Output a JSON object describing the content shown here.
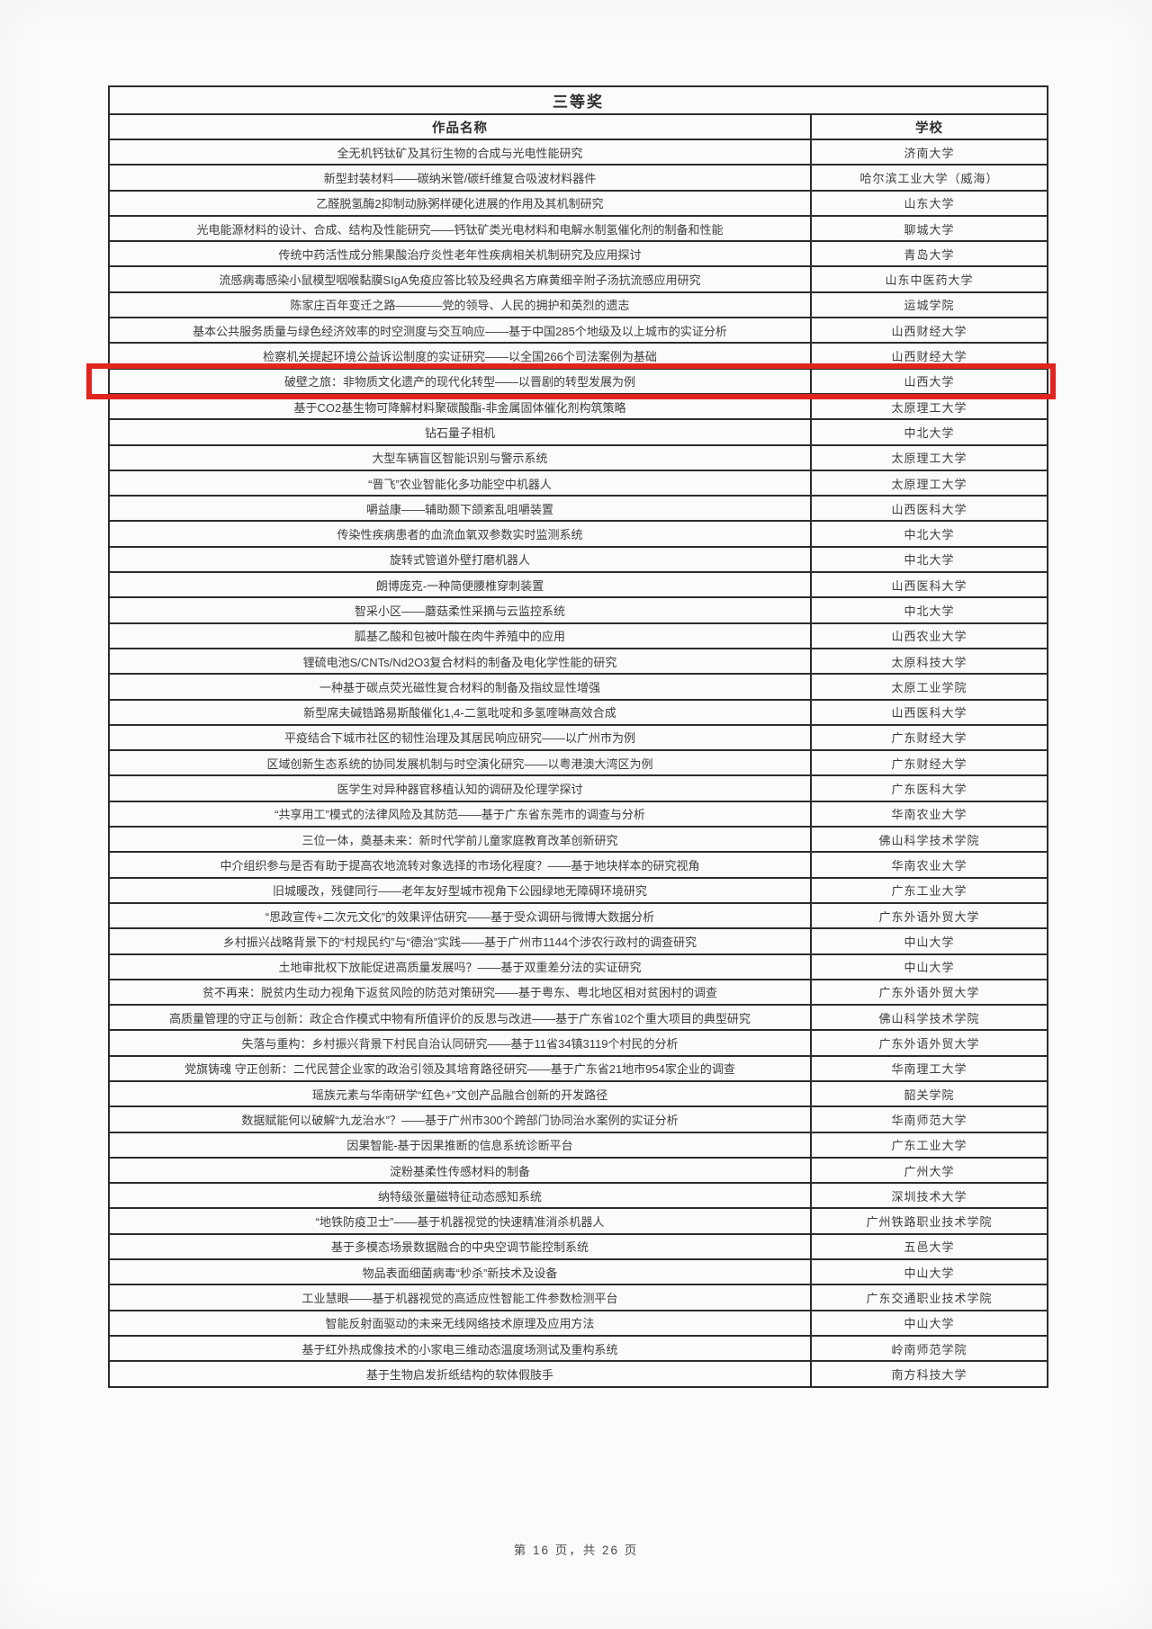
{
  "document": {
    "title": "三等奖",
    "columns": {
      "work": "作品名称",
      "school": "学校"
    },
    "highlight": {
      "row_index": 9,
      "color": "#e0241e"
    },
    "footer": "第 16 页，共 26 页",
    "rows": [
      {
        "work": "全无机钙钛矿及其衍生物的合成与光电性能研究",
        "school": "济南大学"
      },
      {
        "work": "新型封装材料——碳纳米管/碳纤维复合吸波材料器件",
        "school": "哈尔滨工业大学（威海）"
      },
      {
        "work": "乙醛脱氢酶2抑制动脉粥样硬化进展的作用及其机制研究",
        "school": "山东大学"
      },
      {
        "work": "光电能源材料的设计、合成、结构及性能研究——钙钛矿类光电材料和电解水制氢催化剂的制备和性能",
        "school": "聊城大学"
      },
      {
        "work": "传统中药活性成分熊果酸治疗炎性老年性疾病相关机制研究及应用探讨",
        "school": "青岛大学"
      },
      {
        "work": "流感病毒感染小鼠模型咽喉黏膜SIgA免疫应答比较及经典名方麻黄细辛附子汤抗流感应用研究",
        "school": "山东中医药大学"
      },
      {
        "work": "陈家庄百年变迁之路————党的领导、人民的拥护和英烈的遗志",
        "school": "运城学院"
      },
      {
        "work": "基本公共服务质量与绿色经济效率的时空测度与交互响应——基于中国285个地级及以上城市的实证分析",
        "school": "山西财经大学"
      },
      {
        "work": "检察机关提起环境公益诉讼制度的实证研究——以全国266个司法案例为基础",
        "school": "山西财经大学"
      },
      {
        "work": "破壁之旅：非物质文化遗产的现代化转型——以晋剧的转型发展为例",
        "school": "山西大学"
      },
      {
        "work": "基于CO2基生物可降解材料聚碳酸酯-非金属固体催化剂构筑策略",
        "school": "太原理工大学"
      },
      {
        "work": "钻石量子相机",
        "school": "中北大学"
      },
      {
        "work": "大型车辆盲区智能识别与警示系统",
        "school": "太原理工大学"
      },
      {
        "work": "“晋飞”农业智能化多功能空中机器人",
        "school": "太原理工大学"
      },
      {
        "work": "嚼益康——辅助颞下颌紊乱咀嚼装置",
        "school": "山西医科大学"
      },
      {
        "work": "传染性疾病患者的血流血氧双参数实时监测系统",
        "school": "中北大学"
      },
      {
        "work": "旋转式管道外壁打磨机器人",
        "school": "中北大学"
      },
      {
        "work": "朗博庞克-一种简便腰椎穿刺装置",
        "school": "山西医科大学"
      },
      {
        "work": "智采小区——蘑菇柔性采摘与云监控系统",
        "school": "中北大学"
      },
      {
        "work": "胍基乙酸和包被叶酸在肉牛养殖中的应用",
        "school": "山西农业大学"
      },
      {
        "work": "锂硫电池S/CNTs/Nd2O3复合材料的制备及电化学性能的研究",
        "school": "太原科技大学"
      },
      {
        "work": "一种基于碳点荧光磁性复合材料的制备及指纹显性增强",
        "school": "太原工业学院"
      },
      {
        "work": "新型席夫碱锆路易斯酸催化1,4-二氢吡啶和多氢喹啉高效合成",
        "school": "山西医科大学"
      },
      {
        "work": "平疫结合下城市社区的韧性治理及其居民响应研究——以广州市为例",
        "school": "广东财经大学"
      },
      {
        "work": "区域创新生态系统的协同发展机制与时空演化研究——以粤港澳大湾区为例",
        "school": "广东财经大学"
      },
      {
        "work": "医学生对异种器官移植认知的调研及伦理学探讨",
        "school": "广东医科大学"
      },
      {
        "work": "“共享用工”模式的法律风险及其防范——基于广东省东莞市的调查与分析",
        "school": "华南农业大学"
      },
      {
        "work": "三位一体，奠基未来：新时代学前儿童家庭教育改革创新研究",
        "school": "佛山科学技术学院"
      },
      {
        "work": "中介组织参与是否有助于提高农地流转对象选择的市场化程度？——基于地块样本的研究视角",
        "school": "华南农业大学"
      },
      {
        "work": "旧城暖改，残健同行——老年友好型城市视角下公园绿地无障碍环境研究",
        "school": "广东工业大学"
      },
      {
        "work": "“思政宣传+二次元文化”的效果评估研究——基于受众调研与微博大数据分析",
        "school": "广东外语外贸大学"
      },
      {
        "work": "乡村振兴战略背景下的“村规民约”与“德治”实践——基于广州市1144个涉农行政村的调查研究",
        "school": "中山大学"
      },
      {
        "work": "土地审批权下放能促进高质量发展吗？——基于双重差分法的实证研究",
        "school": "中山大学"
      },
      {
        "work": "贫不再来：脱贫内生动力视角下返贫风险的防范对策研究——基于粤东、粤北地区相对贫困村的调查",
        "school": "广东外语外贸大学"
      },
      {
        "work": "高质量管理的守正与创新：政企合作模式中物有所值评价的反思与改进——基于广东省102个重大项目的典型研究",
        "school": "佛山科学技术学院"
      },
      {
        "work": "失落与重构：乡村振兴背景下村民自治认同研究——基于11省34镇3119个村民的分析",
        "school": "广东外语外贸大学"
      },
      {
        "work": "党旗铸魂 守正创新：二代民营企业家的政治引领及其培育路径研究——基于广东省21地市954家企业的调查",
        "school": "华南理工大学"
      },
      {
        "work": "瑶族元素与华南研学“红色+”文创产品融合创新的开发路径",
        "school": "韶关学院"
      },
      {
        "work": "数据赋能何以破解“九龙治水”？——基于广州市300个跨部门协同治水案例的实证分析",
        "school": "华南师范大学"
      },
      {
        "work": "因果智能-基于因果推断的信息系统诊断平台",
        "school": "广东工业大学"
      },
      {
        "work": "淀粉基柔性传感材料的制备",
        "school": "广州大学"
      },
      {
        "work": "纳特级张量磁特征动态感知系统",
        "school": "深圳技术大学"
      },
      {
        "work": "“地铁防疫卫士”——基于机器视觉的快速精准消杀机器人",
        "school": "广州铁路职业技术学院"
      },
      {
        "work": "基于多模态场景数据融合的中央空调节能控制系统",
        "school": "五邑大学"
      },
      {
        "work": "物品表面细菌病毒“秒杀”新技术及设备",
        "school": "中山大学"
      },
      {
        "work": "工业慧眼——基于机器视觉的高适应性智能工件参数检测平台",
        "school": "广东交通职业技术学院"
      },
      {
        "work": "智能反射面驱动的未来无线网络技术原理及应用方法",
        "school": "中山大学"
      },
      {
        "work": "基于红外热成像技术的小家电三维动态温度场测试及重构系统",
        "school": "岭南师范学院"
      },
      {
        "work": "基于生物启发折纸结构的软体假肢手",
        "school": "南方科技大学"
      }
    ]
  }
}
